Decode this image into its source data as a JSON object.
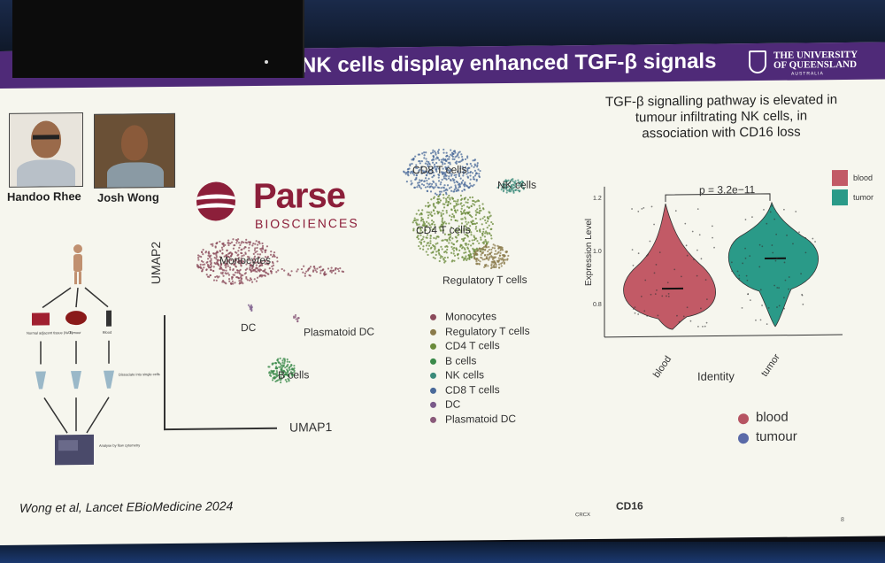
{
  "slide": {
    "title": "NK cells display enhanced TGF-β signals",
    "university": {
      "line1": "THE UNIVERSITY",
      "line2": "OF QUEENSLAND",
      "line3": "AUSTRALIA",
      "crest_icon": "uq-crest-icon"
    },
    "people": [
      {
        "name": "Handoo Rhee"
      },
      {
        "name": "Josh Wong"
      }
    ],
    "parse": {
      "word": "Parse",
      "sub": "BIOSCIENCES"
    },
    "umap": {
      "y_axis": "UMAP2",
      "x_axis": "UMAP1",
      "cluster_labels": {
        "cd8": "CD8 T cells",
        "nk": "NK cells",
        "cd4": "CD4 T cells",
        "treg": "Regulatory T cells",
        "mono": "Monocytes",
        "dc": "DC",
        "pdc": "Plasmatoid DC",
        "bcells": "B cells"
      },
      "legend": [
        {
          "label": "Monocytes",
          "color": "#8a4a5a"
        },
        {
          "label": "Regulatory T cells",
          "color": "#8a7a4a"
        },
        {
          "label": "CD4 T cells",
          "color": "#6a8a3a"
        },
        {
          "label": "B cells",
          "color": "#3a8a4a"
        },
        {
          "label": "NK cells",
          "color": "#3a8a7a"
        },
        {
          "label": "CD8 T cells",
          "color": "#4a6a9a"
        },
        {
          "label": "DC",
          "color": "#7a5a8a"
        },
        {
          "label": "Plasmatoid DC",
          "color": "#8a5a7a"
        }
      ]
    },
    "tgf_text": "TGF-β signalling pathway is elevated in tumour infiltrating NK cells, in association with CD16 loss",
    "violin": {
      "pvalue": "p = 3.2e−11",
      "y_label": "Expression Level",
      "x_label": "Identity",
      "y_ticks": [
        "1.2",
        "1.0",
        "0.8"
      ],
      "groups": [
        {
          "name": "blood",
          "color": "#c25a66",
          "median": 0.86
        },
        {
          "name": "tumor",
          "color": "#2a9a88",
          "median": 0.97
        }
      ]
    },
    "flow": {
      "x_label": "CD16",
      "legend": [
        {
          "label": "blood",
          "color": "#b65462"
        },
        {
          "label": "tumour",
          "color": "#5a6aa8"
        }
      ],
      "axis_corner": "CRCX"
    },
    "workflow": {
      "person_icon": "person-icon",
      "labels": [
        "Normal adjacent tissue (NAT)",
        "Tumour",
        "Blood"
      ],
      "dissociate": "Dissociate into single cells",
      "analyse": "Analyse by flow cytometry"
    },
    "citation": "Wong et al, Lancet EBioMedicine 2024",
    "page_number": "8"
  }
}
